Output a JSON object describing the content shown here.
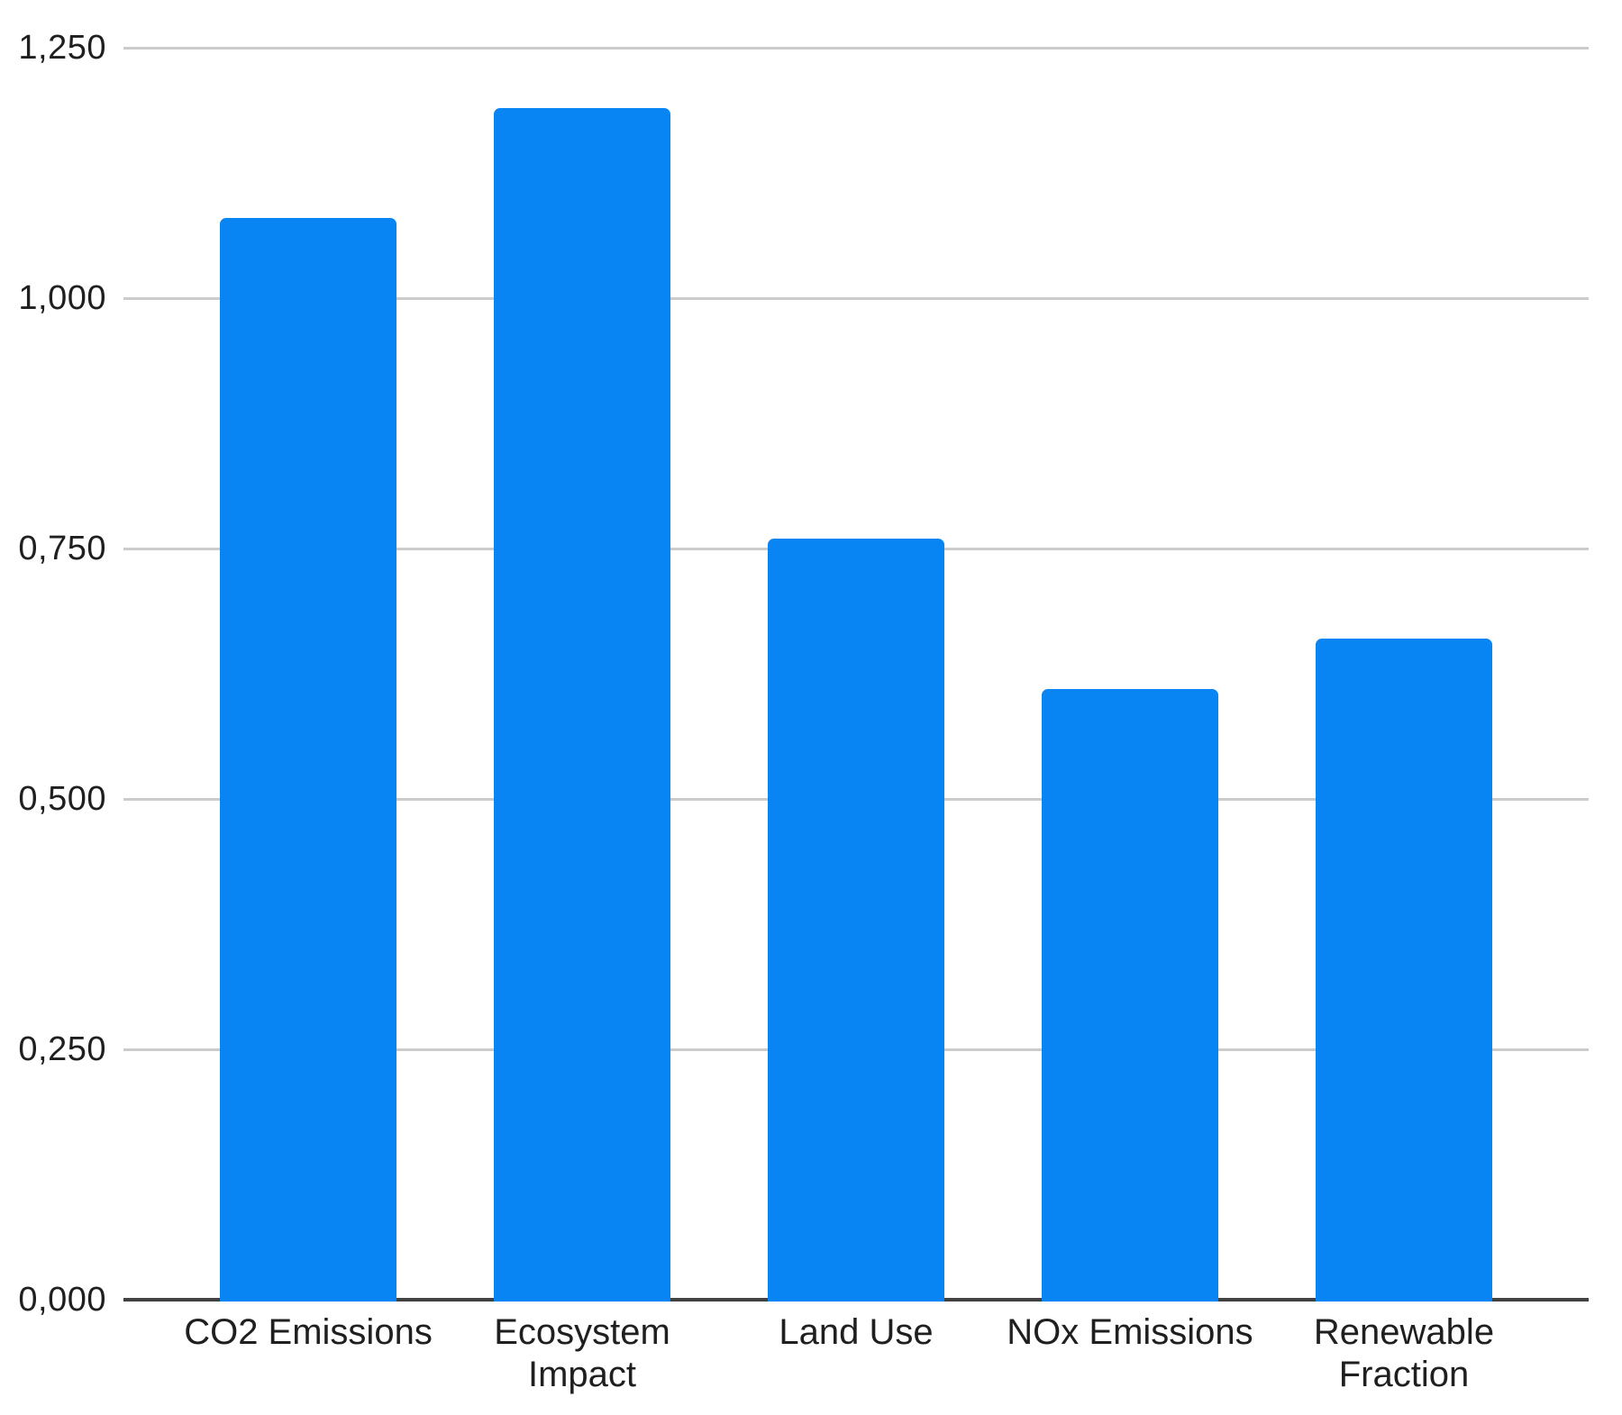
{
  "chart_data": {
    "type": "bar",
    "categories": [
      "CO2 Emissions",
      "Ecosystem Impact",
      "Land Use",
      "NOx Emissions",
      "Renewable Fraction"
    ],
    "category_lines": [
      [
        "CO2 Emissions"
      ],
      [
        "Ecosystem",
        "Impact"
      ],
      [
        "Land Use"
      ],
      [
        "NOx Emissions"
      ],
      [
        "Renewable",
        "Fraction"
      ]
    ],
    "values": [
      1.08,
      1.19,
      0.76,
      0.61,
      0.66
    ],
    "ylim": [
      0,
      1.25
    ],
    "yticks": [
      {
        "value": 0,
        "label": "0,000"
      },
      {
        "value": 0.25,
        "label": "0,250"
      },
      {
        "value": 0.5,
        "label": "0,500"
      },
      {
        "value": 0.75,
        "label": "0,750"
      },
      {
        "value": 1,
        "label": "1,000"
      },
      {
        "value": 1.25,
        "label": "1,250"
      }
    ],
    "decimal_separator": ",",
    "grid": true,
    "legend": "none",
    "colors": {
      "bar": "#0885f2",
      "gridline": "#cccccc",
      "axis_line": "#424242",
      "tick_text": "#1f1f1f",
      "background": "#ffffff"
    }
  }
}
